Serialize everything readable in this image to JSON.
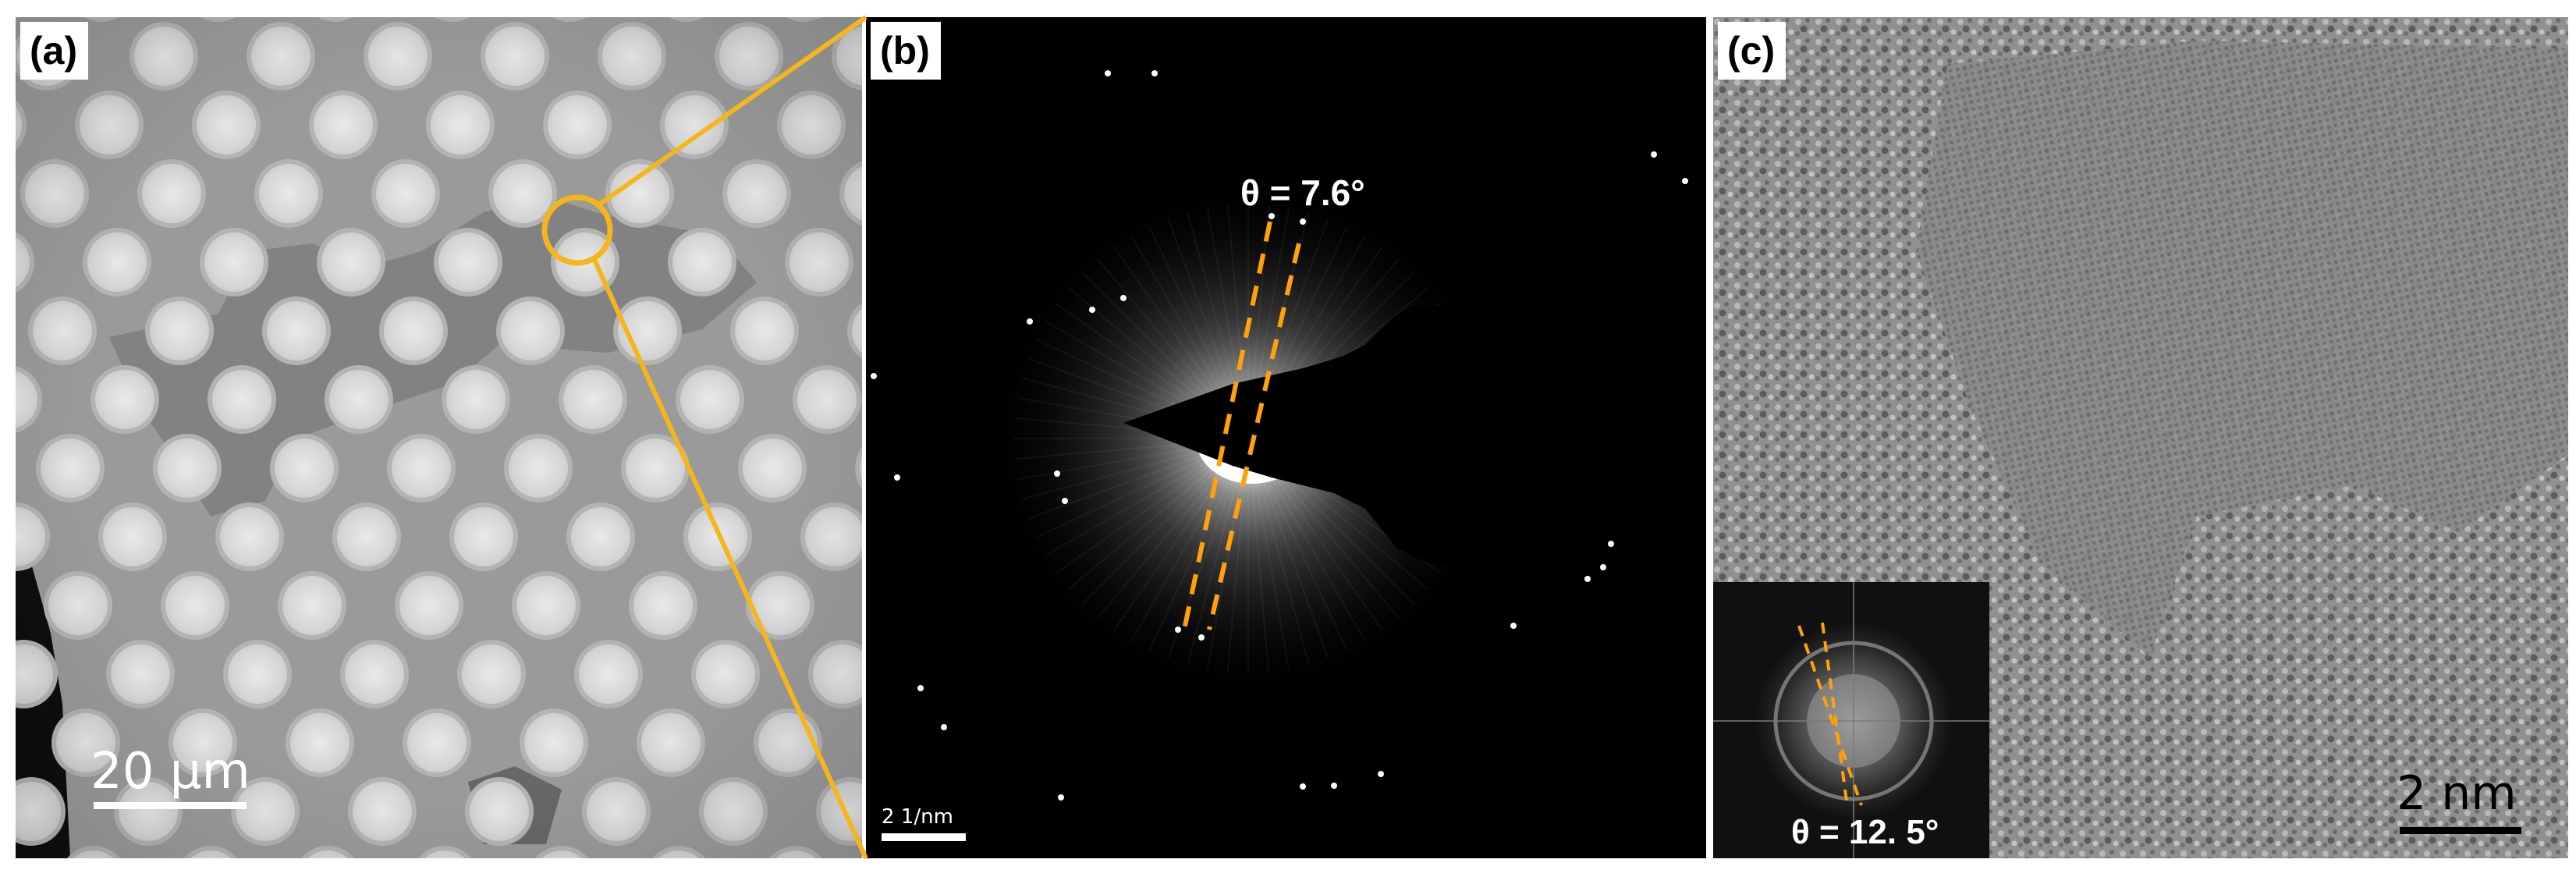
{
  "panels": {
    "a": {
      "label": "(a)",
      "scalebar": "20  µm"
    },
    "b": {
      "label": "(b)",
      "scalebar": "2 1/nm",
      "angle": "θ = 7.6°"
    },
    "c": {
      "label": "(c)",
      "scalebar": "2  nm",
      "inset_angle": "θ = 12. 5°"
    }
  },
  "colors": {
    "accent": "#f6b61a",
    "dashed_lines": "#ffa10a",
    "background": "#ffffff"
  }
}
